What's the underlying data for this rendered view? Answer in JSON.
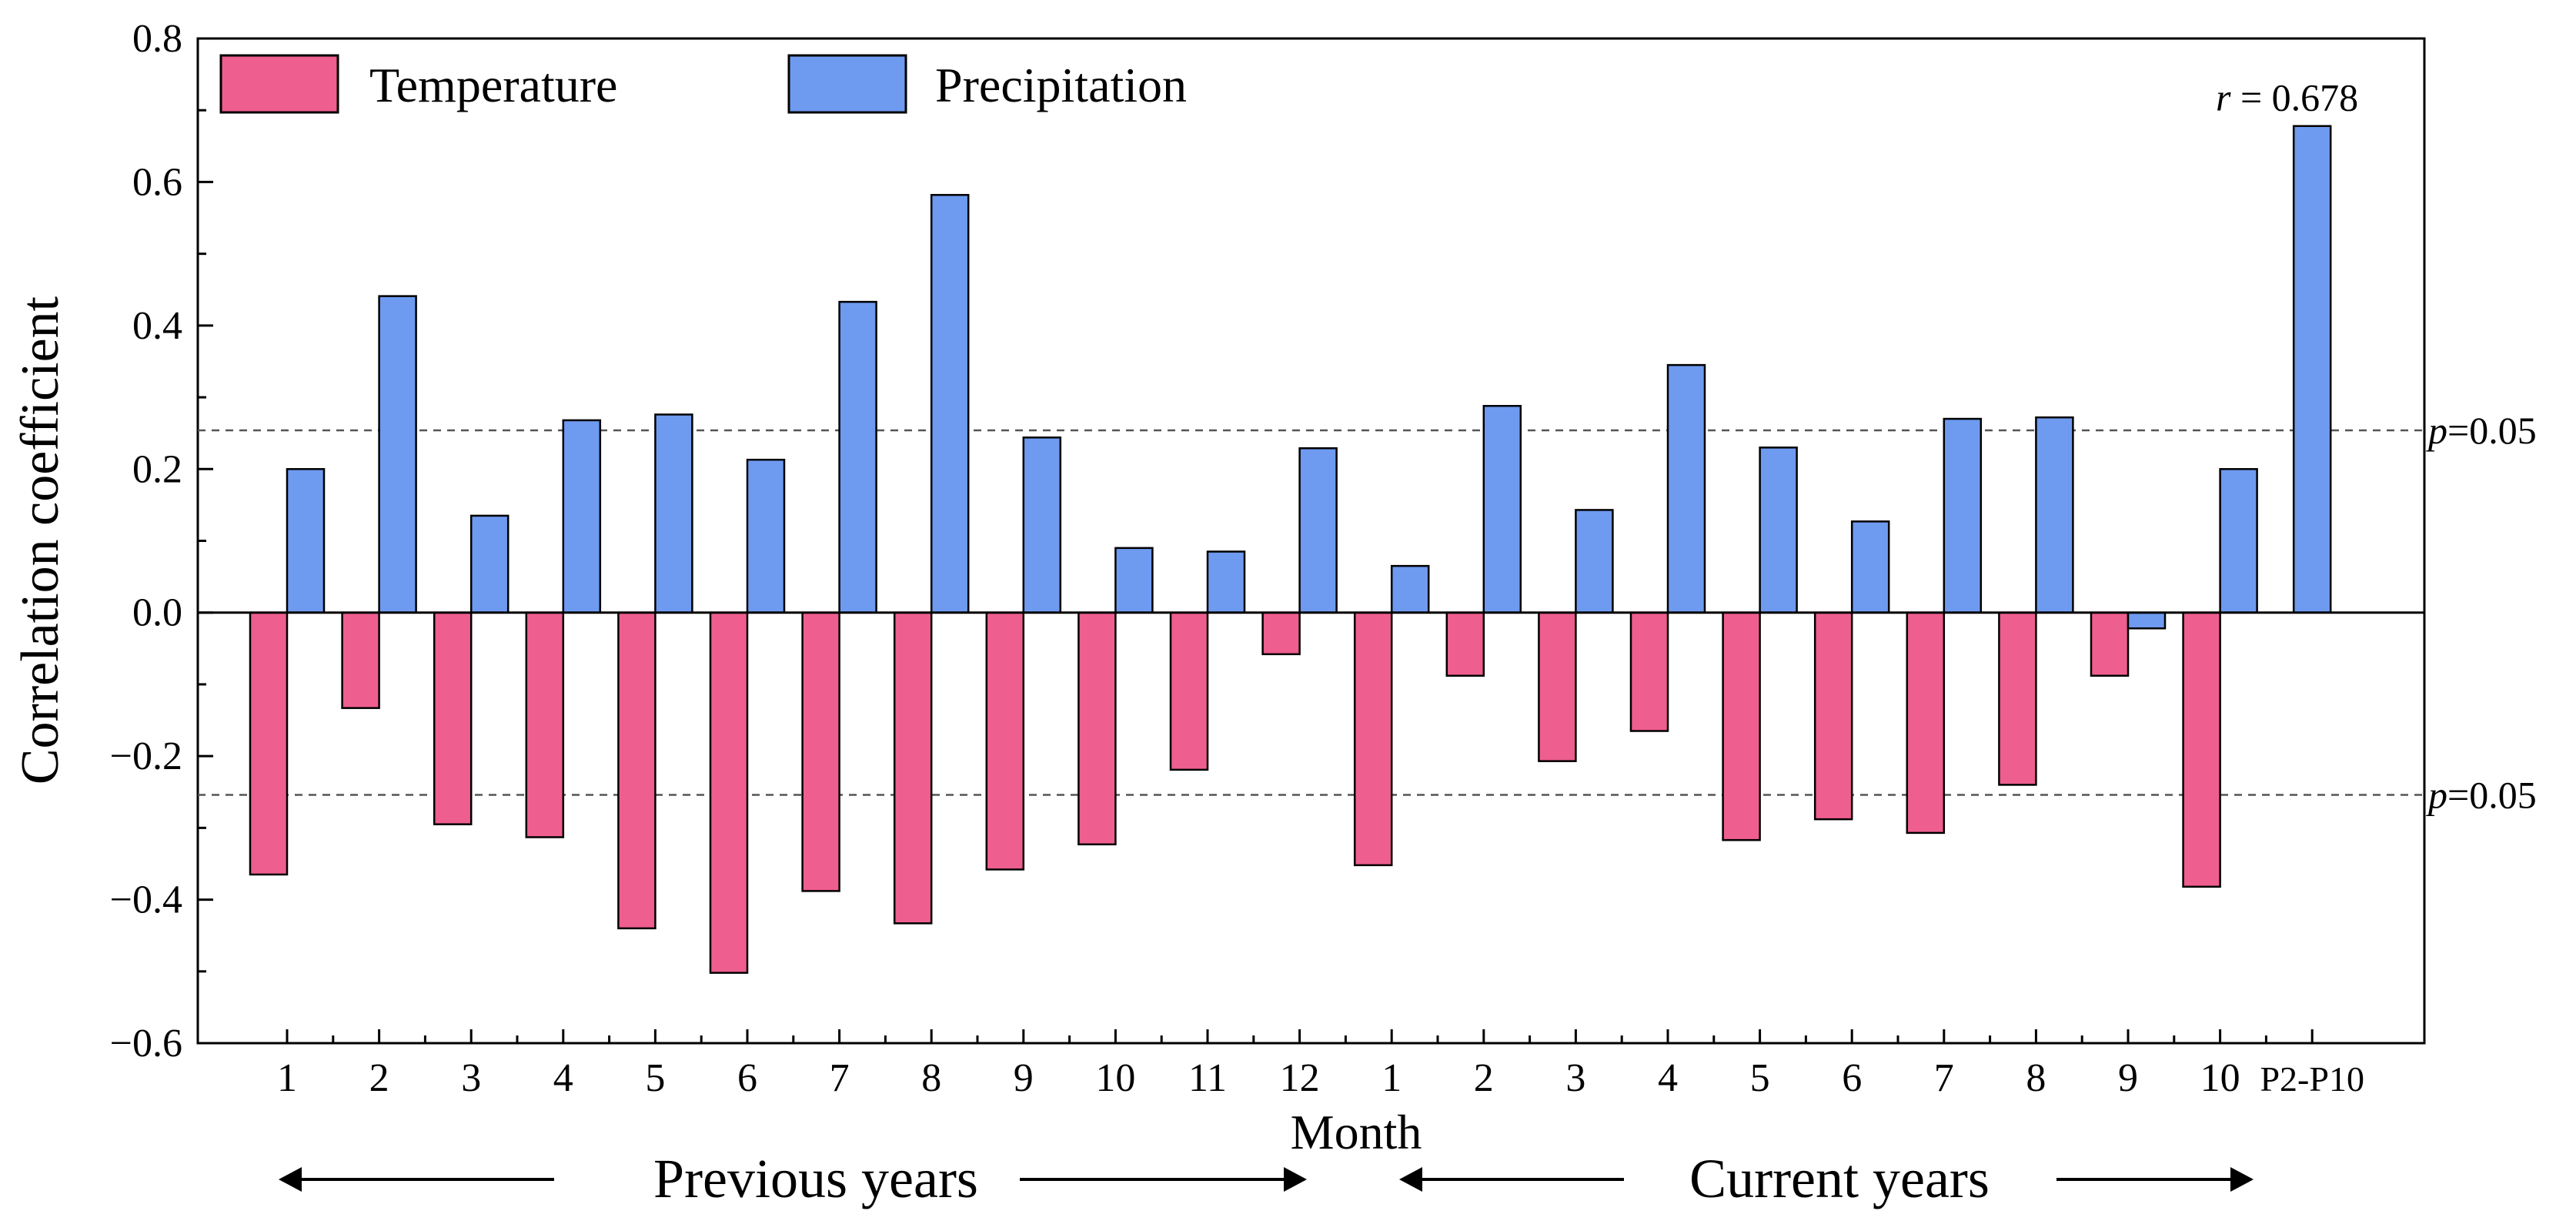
{
  "chart_data": {
    "type": "bar",
    "title": "",
    "xlabel": "Month",
    "ylabel": "Correlation coefficient",
    "ylim": [
      -0.6,
      0.8
    ],
    "yticks": [
      "−0.6",
      "−0.4",
      "−0.2",
      "0.0",
      "0.2",
      "0.4",
      "0.6",
      "0.8"
    ],
    "ytick_values": [
      -0.6,
      -0.4,
      -0.2,
      0.0,
      0.2,
      0.4,
      0.6,
      0.8
    ],
    "categories": [
      "1",
      "2",
      "3",
      "4",
      "5",
      "6",
      "7",
      "8",
      "9",
      "10",
      "11",
      "12",
      "1",
      "2",
      "3",
      "4",
      "5",
      "6",
      "7",
      "8",
      "9",
      "10",
      "P2-P10"
    ],
    "series": [
      {
        "name": "Temperature",
        "color": "#EE5E8E",
        "values": [
          -0.365,
          -0.133,
          -0.295,
          -0.313,
          -0.44,
          -0.502,
          -0.388,
          -0.433,
          -0.358,
          -0.323,
          -0.219,
          -0.058,
          -0.352,
          -0.088,
          -0.207,
          -0.165,
          -0.317,
          -0.288,
          -0.307,
          -0.24,
          -0.088,
          -0.382,
          null
        ]
      },
      {
        "name": "Precipitation",
        "color": "#6E9AF0",
        "values": [
          0.2,
          0.441,
          0.135,
          0.268,
          0.276,
          0.213,
          0.433,
          0.582,
          0.244,
          0.09,
          0.085,
          0.229,
          0.065,
          0.288,
          0.143,
          0.345,
          0.23,
          0.127,
          0.27,
          0.272,
          -0.022,
          0.2,
          0.678
        ]
      }
    ],
    "significance": {
      "label_prefix": "p",
      "label_value": "=0.05",
      "threshold": 0.254
    },
    "annotation": {
      "label_prefix": "r",
      "label_value": " = 0.678"
    },
    "legend_position": "top-left",
    "periods": [
      {
        "label": "Previous years"
      },
      {
        "label": "Current years"
      }
    ]
  }
}
